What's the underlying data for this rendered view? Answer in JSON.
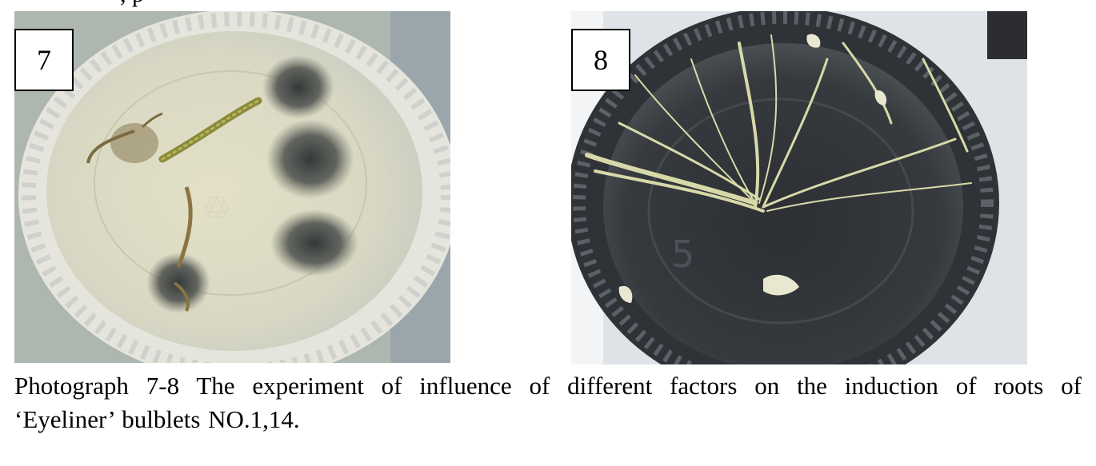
{
  "top_fragment": ", p",
  "figures": [
    {
      "label": "7"
    },
    {
      "label": "8"
    }
  ],
  "caption": {
    "line1": "Photograph 7-8 The experiment of influence of different factors on the induction of roots of",
    "line2": "‘Eyeliner’ bulblets NO.1,14."
  }
}
